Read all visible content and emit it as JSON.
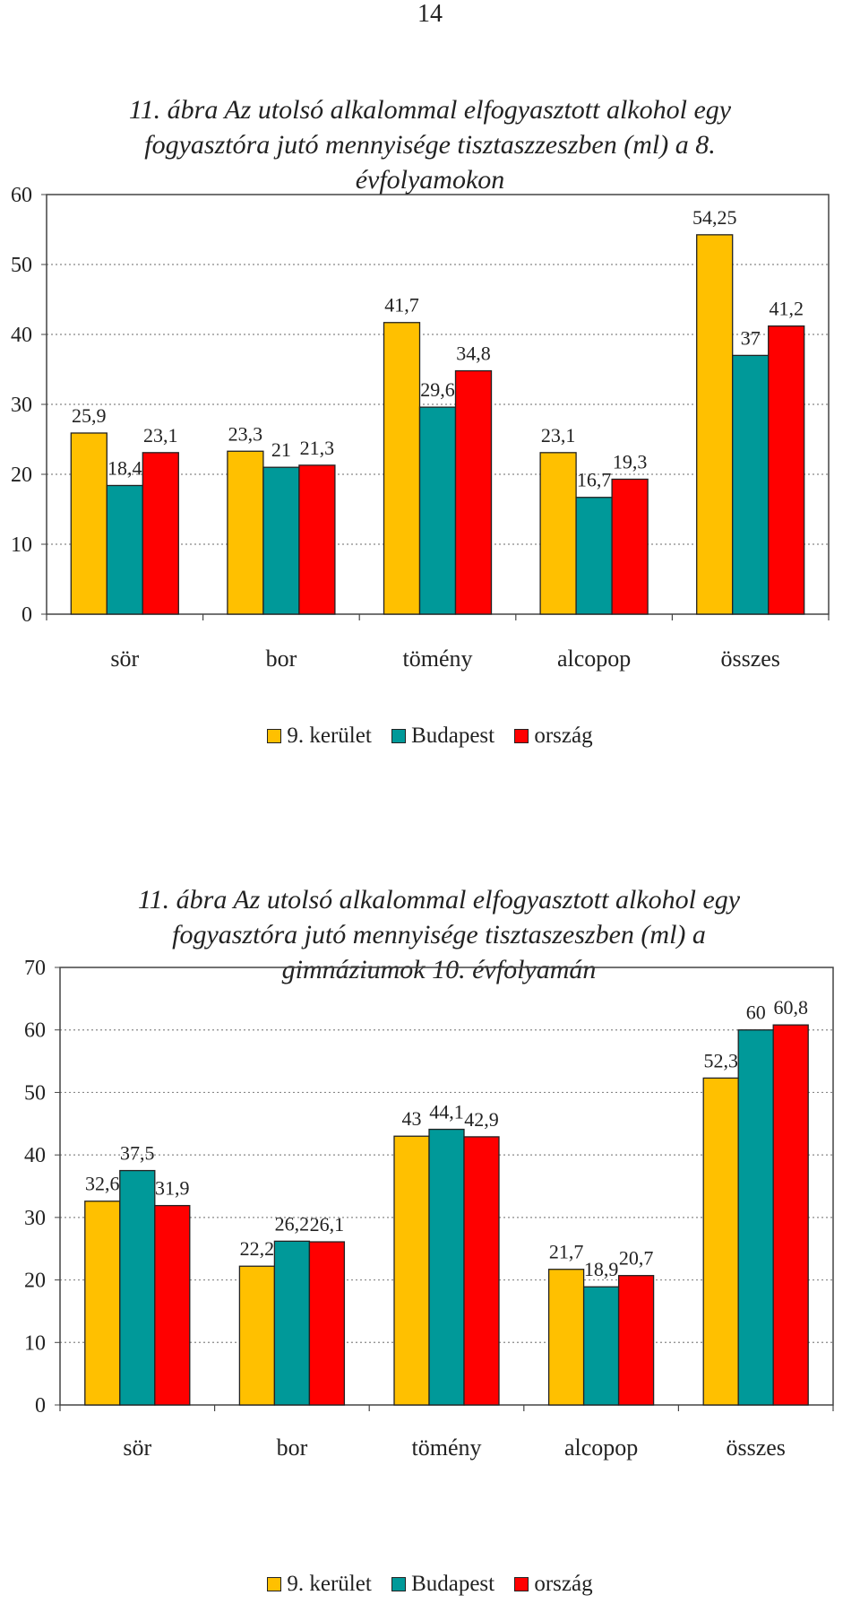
{
  "page_number": "14",
  "colors": {
    "s1": "#FFC000",
    "s2": "#009999",
    "s3": "#FF0000"
  },
  "chart_data": [
    {
      "type": "bar",
      "title": "11. ábra Az utolsó alkalommal elfogyasztott alkohol egy fogyasztóra jutó mennyisége tisztaszzeszben (ml) a 8. évfolyamokon",
      "title_lines": [
        "11. ábra  Az  utolsó alkalommal elfogyasztott alkohol egy",
        "fogyasztóra jutó mennyisége tisztaszzeszben (ml)  a 8.",
        "évfolyamokon"
      ],
      "categories": [
        "sör",
        "bor",
        "tömény",
        "alcopop",
        "összes"
      ],
      "series": [
        {
          "name": "9. kerület",
          "values": [
            25.9,
            23.3,
            41.7,
            23.1,
            54.25
          ],
          "labels": [
            "25,9",
            "23,3",
            "41,7",
            "23,1",
            "54,25"
          ]
        },
        {
          "name": "Budapest",
          "values": [
            18.4,
            21,
            29.6,
            16.7,
            37
          ],
          "labels": [
            "18,4",
            "21",
            "29,6",
            "16,7",
            "37"
          ]
        },
        {
          "name": "ország",
          "values": [
            23.1,
            21.3,
            34.8,
            19.3,
            41.2
          ],
          "labels": [
            "23,1",
            "21,3",
            "34,8",
            "19,3",
            "41,2"
          ]
        }
      ],
      "ylim": [
        0,
        60
      ],
      "yticks": [
        0,
        10,
        20,
        30,
        40,
        50,
        60
      ],
      "grid": true,
      "legend": "bottom"
    },
    {
      "type": "bar",
      "title": "11. ábra Az utolsó alkalommal elfogyasztott alkohol egy fogyasztóra jutó mennyisége tisztaszeszben (ml) a gimnáziumok 10. évfolyamán",
      "title_lines": [
        "11. ábra Az utolsó alkalommal elfogyasztott alkohol  egy",
        "fogyasztóra jutó mennyisége tisztaszeszben (ml) a",
        "gimnáziumok 10. évfolyamán"
      ],
      "categories": [
        "sör",
        "bor",
        "tömény",
        "alcopop",
        "összes"
      ],
      "series": [
        {
          "name": "9. kerület",
          "values": [
            32.6,
            22.2,
            43,
            21.7,
            52.3
          ],
          "labels": [
            "32,6",
            "22,2",
            "43",
            "21,7",
            "52,3"
          ]
        },
        {
          "name": "Budapest",
          "values": [
            37.5,
            26.2,
            44.1,
            18.9,
            60
          ],
          "labels": [
            "37,5",
            "26,2",
            "44,1",
            "18,9",
            "60"
          ]
        },
        {
          "name": "ország",
          "values": [
            31.9,
            26.1,
            42.9,
            20.7,
            60.8
          ],
          "labels": [
            "31,9",
            "26,1",
            "42,9",
            "20,7",
            "60,8"
          ]
        }
      ],
      "ylim": [
        0,
        70
      ],
      "yticks": [
        0,
        10,
        20,
        30,
        40,
        50,
        60,
        70
      ],
      "grid": true,
      "legend": "bottom"
    }
  ]
}
